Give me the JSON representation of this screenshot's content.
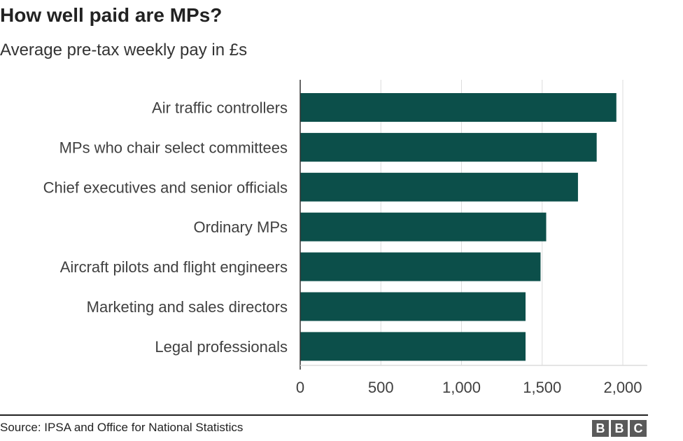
{
  "header": {
    "title": "How well paid are MPs?",
    "subtitle": "Average pre-tax weekly pay in £s"
  },
  "footer": {
    "source": "Source: IPSA and Office for National Statistics",
    "logo_letters": [
      "B",
      "B",
      "C"
    ]
  },
  "colors": {
    "bar": "#0c4f4a",
    "grid": "#dcdcdc",
    "axis": "#333333"
  },
  "chart_data": {
    "type": "bar",
    "orientation": "horizontal",
    "title": "How well paid are MPs?",
    "subtitle": "Average pre-tax weekly pay in £s",
    "categories": [
      "Air traffic controllers",
      "MPs who chair select committees",
      "Chief executives and senior officials",
      "Ordinary MPs",
      "Aircraft pilots and flight engineers",
      "Marketing and sales directors",
      "Legal professionals"
    ],
    "values": [
      1960,
      1838,
      1722,
      1525,
      1490,
      1397,
      1397
    ],
    "xlim": [
      0,
      2150
    ],
    "xticks": [
      0,
      500,
      1000,
      1500,
      2000
    ],
    "xtick_labels": [
      "0",
      "500",
      "1,000",
      "1,500",
      "2,000"
    ],
    "xlabel": "",
    "ylabel": "",
    "grid": true,
    "legend": "none"
  }
}
